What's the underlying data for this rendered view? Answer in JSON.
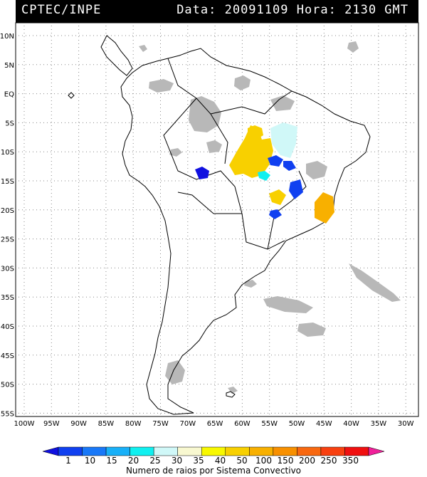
{
  "header": {
    "left": "CPTEC/INPE",
    "right": "Data: 20091109 Hora: 2130 GMT"
  },
  "map": {
    "lat_labels": [
      "10N",
      "5N",
      "EQ",
      "5S",
      "10S",
      "15S",
      "20S",
      "25S",
      "30S",
      "35S",
      "40S",
      "45S",
      "50S",
      "55S"
    ],
    "lon_labels": [
      "100W",
      "95W",
      "90W",
      "85W",
      "80W",
      "75W",
      "70W",
      "65W",
      "60W",
      "55W",
      "50W",
      "45W",
      "40W",
      "35W",
      "30W"
    ],
    "cloud_color": "#b8b8b8",
    "coast_color": "#000000"
  },
  "colorbar": {
    "labels": [
      "1",
      "10",
      "15",
      "20",
      "25",
      "30",
      "35",
      "40",
      "50",
      "100",
      "150",
      "200",
      "250",
      "350"
    ],
    "colors": [
      "#1010e0",
      "#1040f0",
      "#1878f8",
      "#18b0f8",
      "#10f0f0",
      "#d0f8f8",
      "#f8f8d0",
      "#f8f800",
      "#f8d000",
      "#f8b000",
      "#f89000",
      "#f86810",
      "#f84010",
      "#f01010",
      "#f0209a"
    ],
    "title": "Numero de raios por Sistema Convectivo"
  },
  "systems": [
    {
      "value": 40,
      "color": "#f8d000"
    },
    {
      "value": 40,
      "color": "#f8d000"
    },
    {
      "value": 30,
      "color": "#d0f8f8"
    },
    {
      "value": 1,
      "color": "#1010e0"
    },
    {
      "value": 25,
      "color": "#10f0f0"
    },
    {
      "value": 1,
      "color": "#1040f0"
    },
    {
      "value": 1,
      "color": "#1040f0"
    },
    {
      "value": 40,
      "color": "#f8d000"
    },
    {
      "value": 10,
      "color": "#1040f0"
    },
    {
      "value": 50,
      "color": "#f8b000"
    },
    {
      "value": 10,
      "color": "#1040f0"
    }
  ]
}
